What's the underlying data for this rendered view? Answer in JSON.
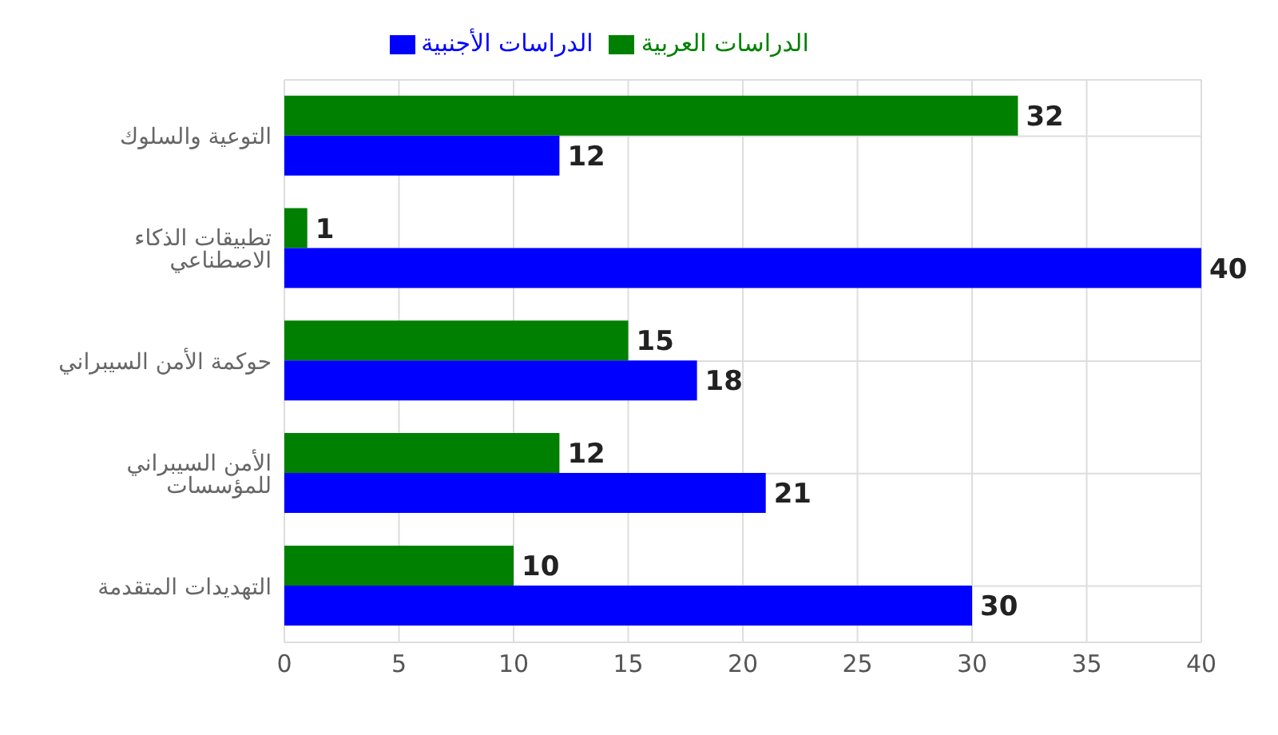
{
  "chart_data": {
    "type": "bar",
    "orientation": "horizontal",
    "categories": [
      "التوعية والسلوك",
      "تطبيقات الذكاء الاصطناعي",
      "حوكمة الأمن السيبراني",
      "الأمن السيبراني للمؤسسات",
      "التهديدات المتقدمة"
    ],
    "series": [
      {
        "name": "الدراسات العربية",
        "color": "#008000",
        "values": [
          32,
          1,
          15,
          12,
          10
        ]
      },
      {
        "name": "الدراسات الأجنبية",
        "color": "#0000ff",
        "values": [
          12,
          40,
          18,
          21,
          30
        ]
      }
    ],
    "xlim": [
      0,
      40
    ],
    "xticks": [
      0,
      5,
      10,
      15,
      20,
      25,
      30,
      35,
      40
    ],
    "grid": true,
    "legend": "top",
    "data_labels": true
  }
}
